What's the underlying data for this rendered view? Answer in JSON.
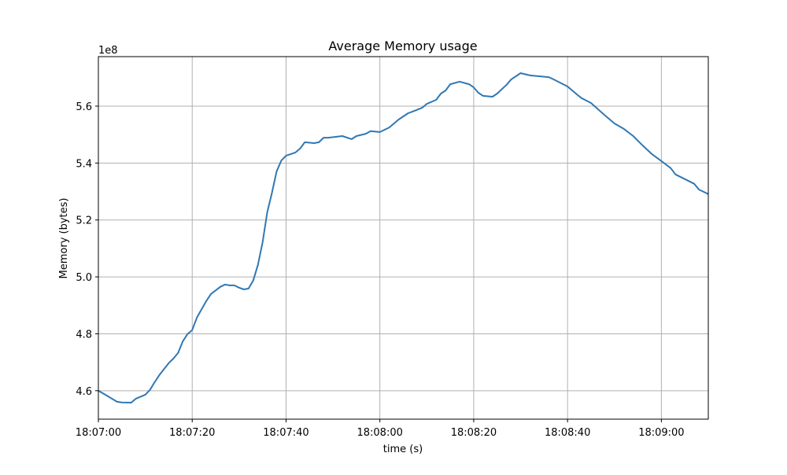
{
  "chart_data": {
    "type": "line",
    "title": "Average Memory usage",
    "xlabel": "time (s)",
    "ylabel": "Memory (bytes)",
    "y_offset_label": "1e8",
    "xlim": [
      "18:07:00",
      "18:09:10"
    ],
    "ylim": [
      450000000,
      577400000
    ],
    "grid": true,
    "line_color": "#2f78b4",
    "x_ticks": [
      "18:07:00",
      "18:07:20",
      "18:07:40",
      "18:08:00",
      "18:08:20",
      "18:08:40",
      "18:09:00"
    ],
    "y_ticks": [
      4.6,
      4.8,
      5.0,
      5.2,
      5.4,
      5.6
    ],
    "y_tick_labels": [
      "4.6",
      "4.8",
      "5.0",
      "5.2",
      "5.4",
      "5.6"
    ],
    "series": [
      {
        "x": [
          "18:07:00",
          "18:07:02",
          "18:07:04",
          "18:07:05",
          "18:07:07",
          "18:07:08",
          "18:07:10",
          "18:07:11",
          "18:07:12",
          "18:07:13",
          "18:07:15",
          "18:07:16",
          "18:07:17",
          "18:07:18",
          "18:07:19",
          "18:07:20",
          "18:07:21",
          "18:07:23",
          "18:07:24",
          "18:07:26",
          "18:07:27",
          "18:07:28",
          "18:07:29",
          "18:07:30",
          "18:07:31",
          "18:07:32",
          "18:07:33",
          "18:07:34",
          "18:07:35",
          "18:07:36",
          "18:07:37",
          "18:07:38",
          "18:07:39",
          "18:07:40",
          "18:07:42",
          "18:07:43",
          "18:07:44",
          "18:07:46",
          "18:07:47",
          "18:07:48",
          "18:07:49",
          "18:07:52",
          "18:07:54",
          "18:07:55",
          "18:07:57",
          "18:07:58",
          "18:08:00",
          "18:08:02",
          "18:08:04",
          "18:08:06",
          "18:08:07",
          "18:08:09",
          "18:08:10",
          "18:08:12",
          "18:08:13",
          "18:08:14",
          "18:08:15",
          "18:08:17",
          "18:08:19",
          "18:08:20",
          "18:08:21",
          "18:08:22",
          "18:08:24",
          "18:08:25",
          "18:08:27",
          "18:08:28",
          "18:08:30",
          "18:08:32",
          "18:08:34",
          "18:08:36",
          "18:08:37",
          "18:08:40",
          "18:08:42",
          "18:08:43",
          "18:08:45",
          "18:08:48",
          "18:08:50",
          "18:08:52",
          "18:08:54",
          "18:08:56",
          "18:08:58",
          "18:09:00",
          "18:09:02",
          "18:09:03",
          "18:09:07",
          "18:09:08",
          "18:09:10"
        ],
        "y": [
          460000000,
          458100000,
          456100000,
          455900000,
          455800000,
          457200000,
          458600000,
          460300000,
          463000000,
          465500000,
          469700000,
          471300000,
          473300000,
          477400000,
          479900000,
          481300000,
          485700000,
          491500000,
          494000000,
          496500000,
          497300000,
          497000000,
          497000000,
          496200000,
          495600000,
          495900000,
          498700000,
          504200000,
          512200000,
          522700000,
          529600000,
          537100000,
          540900000,
          542600000,
          543700000,
          545100000,
          547300000,
          547000000,
          547300000,
          548900000,
          548900000,
          549500000,
          548400000,
          549500000,
          550300000,
          551200000,
          550900000,
          552500000,
          555300000,
          557500000,
          558100000,
          559400000,
          560800000,
          562200000,
          564400000,
          565500000,
          567700000,
          568600000,
          567700000,
          566600000,
          564700000,
          563600000,
          563300000,
          564400000,
          567500000,
          569400000,
          571600000,
          570800000,
          570500000,
          570200000,
          569400000,
          566900000,
          564100000,
          562800000,
          561100000,
          556700000,
          553900000,
          552000000,
          549500000,
          546200000,
          543100000,
          540700000,
          538200000,
          536000000,
          532700000,
          530700000,
          529100000
        ]
      }
    ]
  }
}
